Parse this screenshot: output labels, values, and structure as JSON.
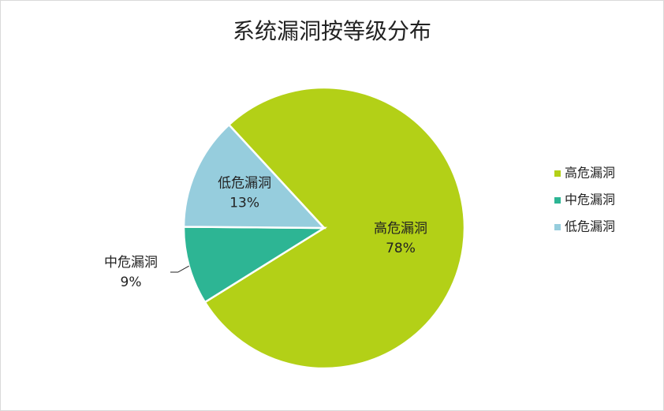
{
  "chart_data": {
    "type": "pie",
    "title": "系统漏洞按等级分布",
    "categories": [
      "高危漏洞",
      "中危漏洞",
      "低危漏洞"
    ],
    "values": [
      78,
      9,
      13
    ],
    "value_labels": [
      "78%",
      "9%",
      "13%"
    ],
    "colors": [
      "#b3d017",
      "#2db594",
      "#96cddd"
    ],
    "legend": "right"
  }
}
